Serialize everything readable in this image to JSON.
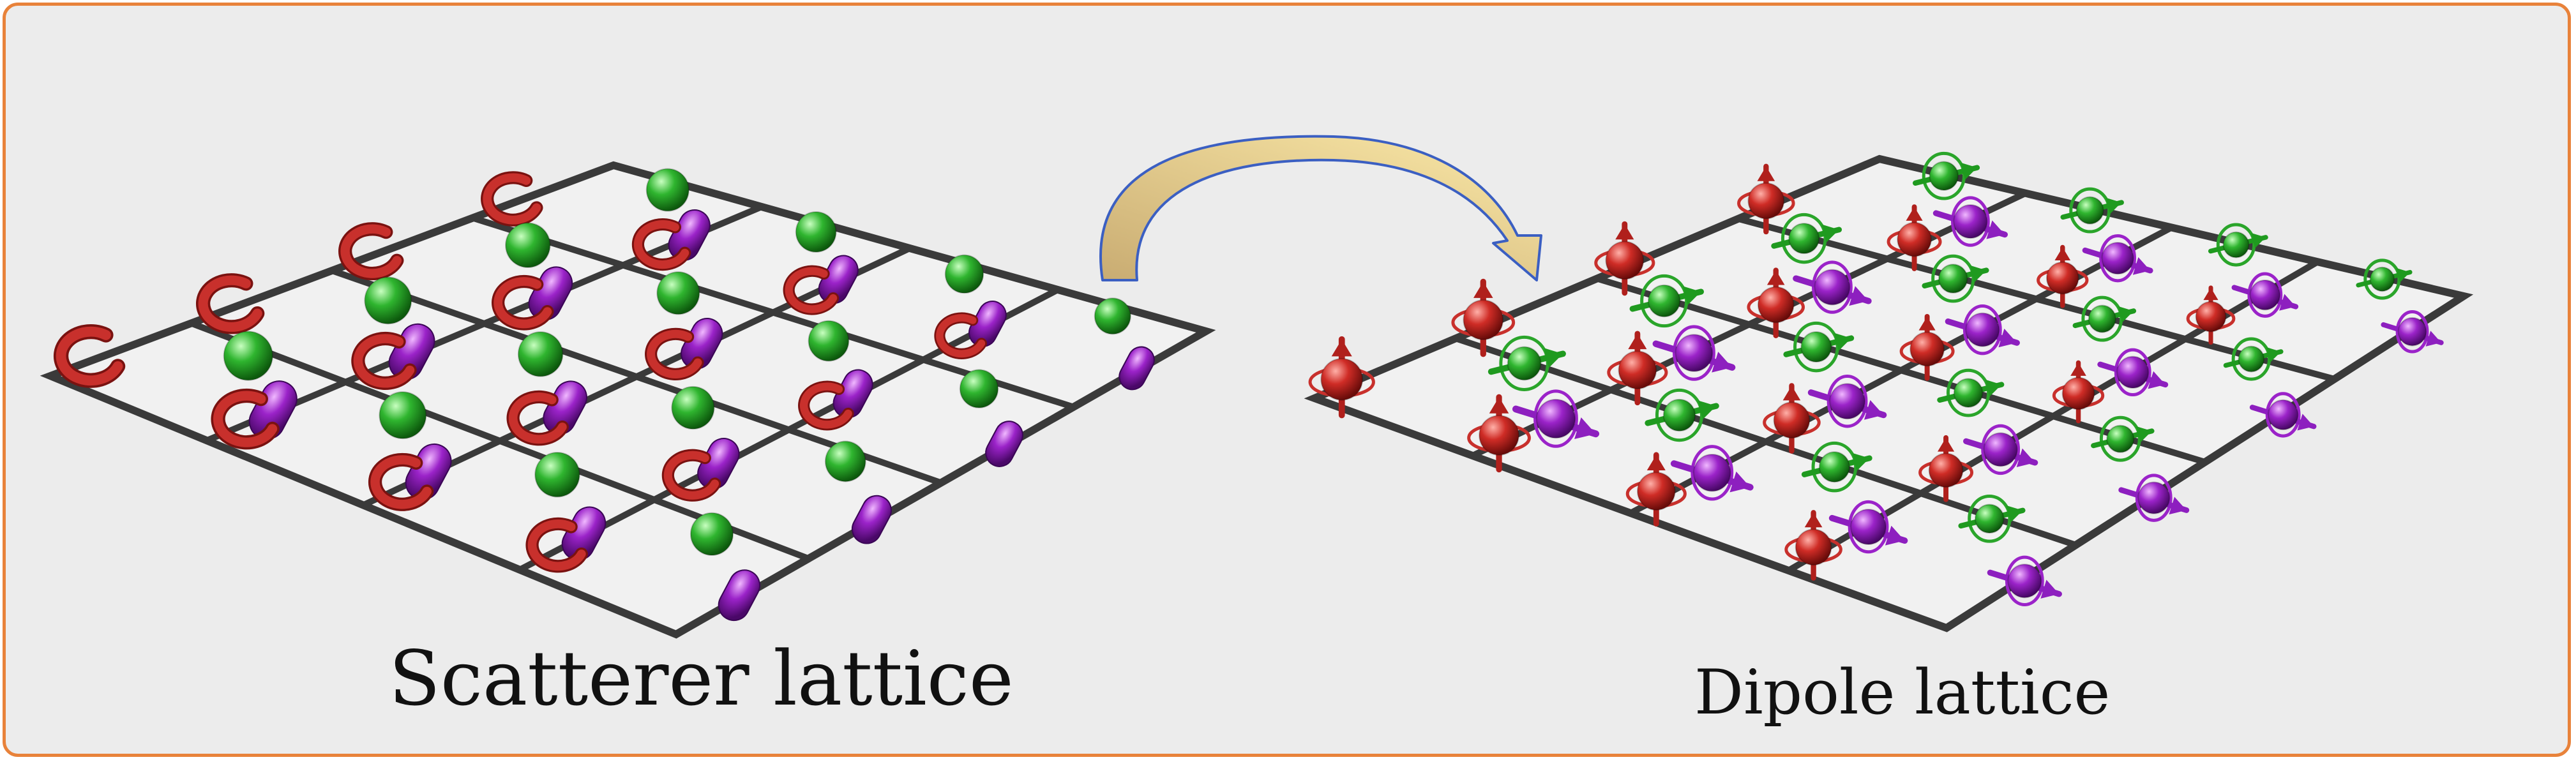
{
  "captions": {
    "left": "Scatterer lattice",
    "right": "Dipole lattice"
  },
  "colors": {
    "frame_border": "#e8823a",
    "background": "#ececec",
    "grid_lines": "#3a3a3a",
    "ring_scatterer": "#c8302c",
    "sphere_scatterer": "#2aa52a",
    "capsule_scatterer": "#9b23c9",
    "arrow_fill": "#d9c28a",
    "arrow_outline": "#3b5fc2"
  },
  "icons": {
    "left_lattice": [
      "split-ring-icon",
      "sphere-icon",
      "capsule-icon"
    ],
    "right_lattice": [
      "magnetic-dipole-icon",
      "electric-dipole-icon",
      "chiral-dipole-icon"
    ],
    "transform": "curved-arrow-icon"
  }
}
